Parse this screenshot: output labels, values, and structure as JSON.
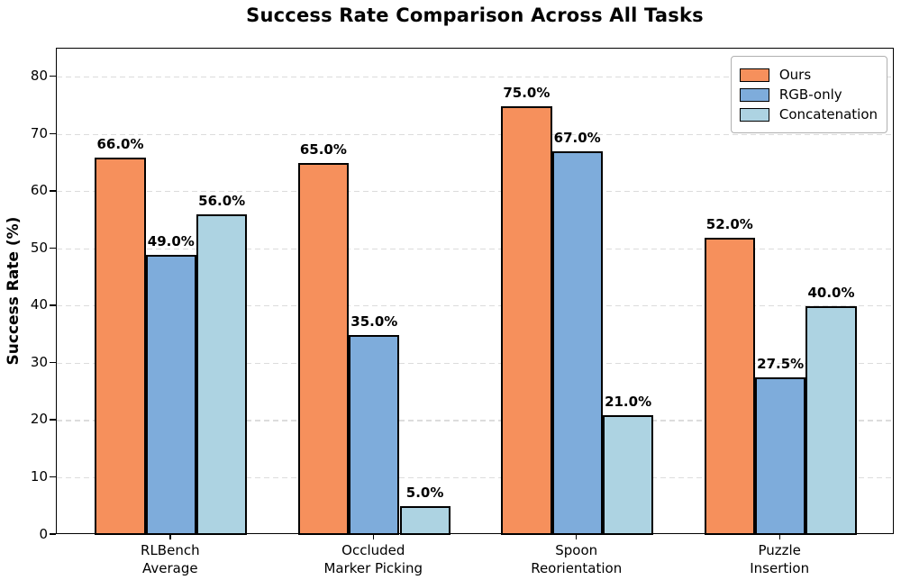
{
  "chart_data": {
    "type": "bar",
    "title": "Success Rate Comparison Across All Tasks",
    "ylabel": "Success Rate (%)",
    "xlabel": "",
    "categories": [
      "RLBench\nAverage",
      "Occluded\nMarker Picking",
      "Spoon\nReorientation",
      "Puzzle\nInsertion"
    ],
    "series": [
      {
        "name": "Ours",
        "color": "#F6905C",
        "values": [
          66.0,
          65.0,
          75.0,
          52.0
        ]
      },
      {
        "name": "RGB-only",
        "color": "#7EACDB",
        "values": [
          49.0,
          35.0,
          67.0,
          27.5
        ]
      },
      {
        "name": "Concatenation",
        "color": "#ADD3E2",
        "values": [
          56.0,
          5.0,
          21.0,
          40.0
        ]
      }
    ],
    "value_label_decimals": 1,
    "value_label_suffix": "%",
    "yticks": [
      0,
      10,
      20,
      30,
      40,
      50,
      60,
      70,
      80
    ],
    "ylim": [
      0,
      85
    ],
    "grid": "horizontal dashed",
    "legend_position": "upper right",
    "bar_edge_color": "#000000",
    "background_color": "#ffffff"
  }
}
